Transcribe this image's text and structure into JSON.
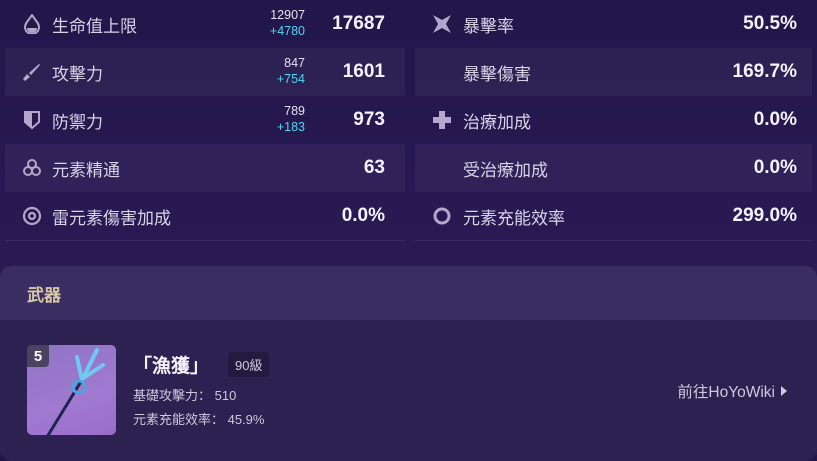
{
  "stats_left": [
    {
      "icon": "hp-drop-icon",
      "label": "生命值上限",
      "base": "12907",
      "bonus": "+4780",
      "value": "17687"
    },
    {
      "icon": "sword-icon",
      "label": "攻擊力",
      "base": "847",
      "bonus": "+754",
      "value": "1601"
    },
    {
      "icon": "shield-icon",
      "label": "防禦力",
      "base": "789",
      "bonus": "+183",
      "value": "973"
    },
    {
      "icon": "elemental-mastery-icon",
      "label": "元素精通",
      "value": "63"
    },
    {
      "icon": "electro-icon",
      "label": "雷元素傷害加成",
      "value": "0.0%"
    }
  ],
  "stats_right": [
    {
      "icon": "crit-star-icon",
      "label": "暴擊率",
      "value": "50.5%"
    },
    {
      "label": "暴擊傷害",
      "value": "169.7%"
    },
    {
      "icon": "healing-cross-icon",
      "label": "治療加成",
      "value": "0.0%"
    },
    {
      "label": "受治療加成",
      "value": "0.0%"
    },
    {
      "icon": "energy-recharge-icon",
      "label": "元素充能效率",
      "value": "299.0%"
    }
  ],
  "weapon": {
    "header": "武器",
    "rarity": "5",
    "name": "「漁獲」",
    "level": "90級",
    "stat1": "基礎攻擊力：  510",
    "stat2": "元素充能效率：  45.9%",
    "link": "前往HoYoWiki"
  }
}
